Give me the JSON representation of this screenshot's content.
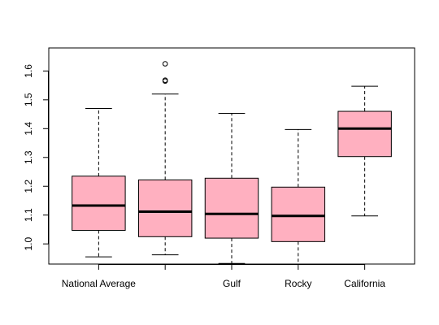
{
  "chart_data": {
    "type": "box",
    "title": "",
    "xlabel": "",
    "ylabel": "",
    "ylim": [
      0.93,
      1.68
    ],
    "yticks": [
      "1.0",
      "1.1",
      "1.2",
      "1.3",
      "1.4",
      "1.5",
      "1.6"
    ],
    "categories": [
      "National Average",
      "",
      "Gulf",
      "Rocky",
      "California"
    ],
    "boxes": [
      {
        "label": "National Average",
        "min": 0.955,
        "q1": 1.047,
        "median": 1.133,
        "q3": 1.235,
        "max": 1.47,
        "outliers": []
      },
      {
        "label": "",
        "min": 0.962,
        "q1": 1.025,
        "median": 1.112,
        "q3": 1.222,
        "max": 1.52,
        "outliers": [
          1.565,
          1.568,
          1.625
        ]
      },
      {
        "label": "Gulf",
        "min": 0.932,
        "q1": 1.02,
        "median": 1.104,
        "q3": 1.228,
        "max": 1.453,
        "outliers": []
      },
      {
        "label": "Rocky",
        "min": 0.93,
        "q1": 1.008,
        "median": 1.097,
        "q3": 1.197,
        "max": 1.397,
        "outliers": []
      },
      {
        "label": "California",
        "min": 1.097,
        "q1": 1.303,
        "median": 1.4,
        "q3": 1.46,
        "max": 1.547,
        "outliers": []
      }
    ],
    "colors": {
      "box_fill": "#FFB0C0",
      "stroke": "#000000",
      "background": "#ffffff"
    },
    "grid": false,
    "legend": "none"
  }
}
